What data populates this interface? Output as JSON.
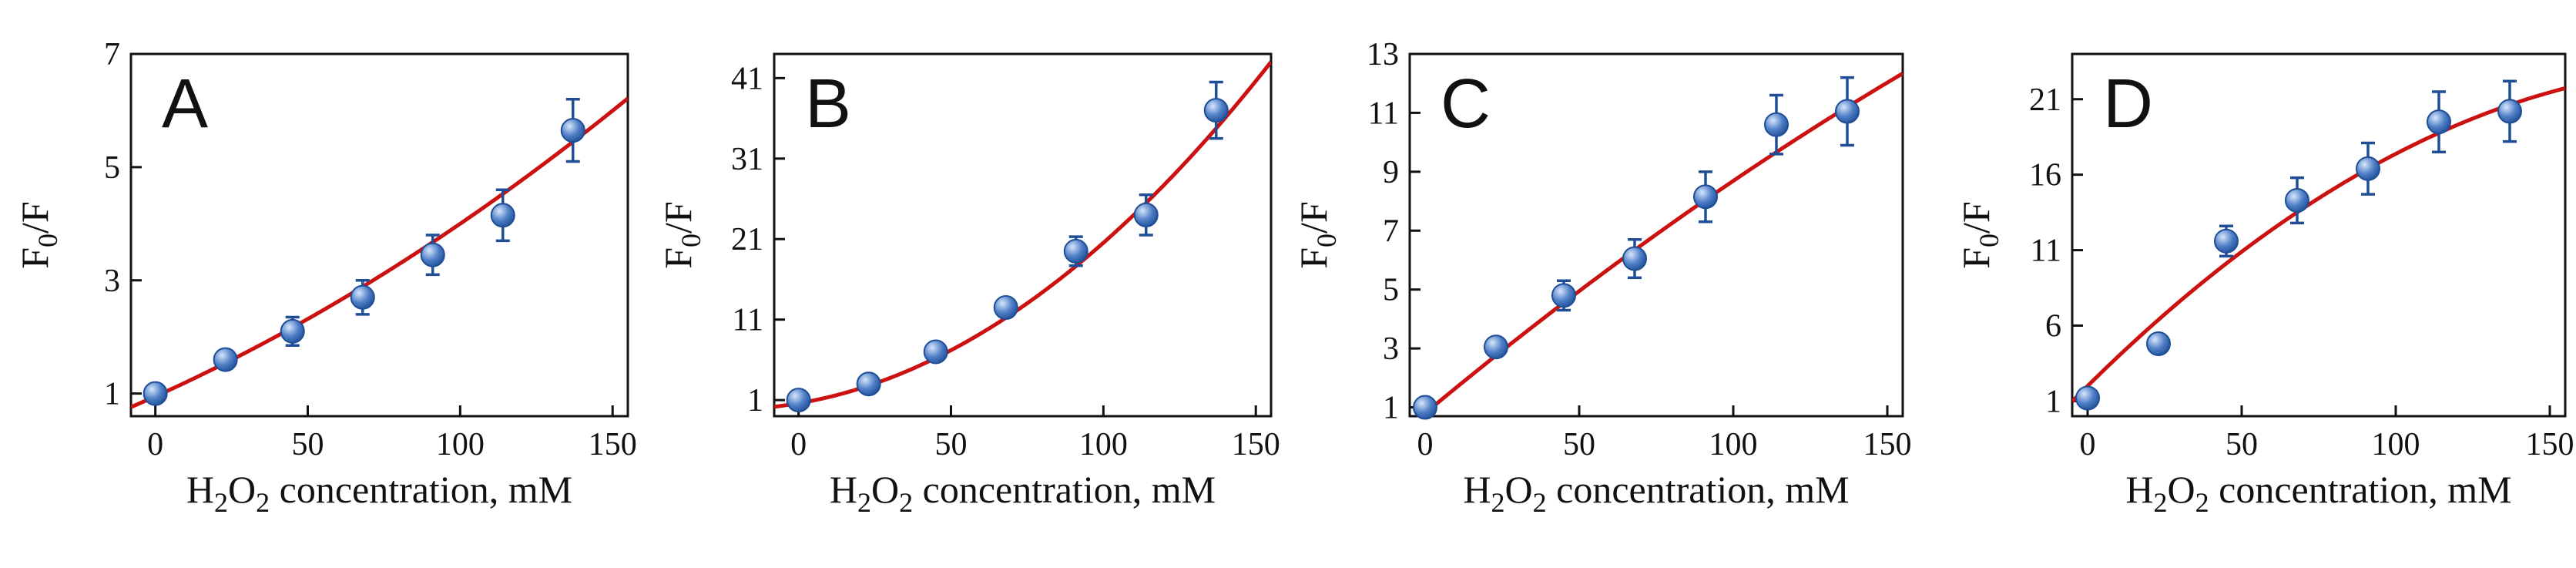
{
  "figure": {
    "background": "#ffffff"
  },
  "style": {
    "fit_color": "#cc1111",
    "marker_color": "#1f4e96",
    "marker_highlight": "#d6e6fb"
  },
  "chart_data": [
    {
      "type": "scatter",
      "panel_label": "A",
      "ylabel": "F0/F",
      "xlabel": "H2O2 concentration, mM",
      "xlim": [
        -8,
        155
      ],
      "ylim": [
        0.6,
        7
      ],
      "xticks": [
        0,
        50,
        100,
        150
      ],
      "yticks": [
        1,
        3,
        5,
        7
      ],
      "points": [
        {
          "x": 0,
          "y": 1.0,
          "err": 0.08
        },
        {
          "x": 23,
          "y": 1.6,
          "err": 0.12
        },
        {
          "x": 45,
          "y": 2.1,
          "err": 0.25
        },
        {
          "x": 68,
          "y": 2.7,
          "err": 0.3
        },
        {
          "x": 91,
          "y": 3.45,
          "err": 0.35
        },
        {
          "x": 114,
          "y": 4.15,
          "err": 0.45
        },
        {
          "x": 137,
          "y": 5.65,
          "err": 0.55
        }
      ],
      "fit": {
        "form": "quadratic",
        "coeffs": [
          0.95,
          0.0242,
          6.3e-05
        ]
      }
    },
    {
      "type": "scatter",
      "panel_label": "B",
      "ylabel": "F0/F",
      "xlabel": "H2O2 concentration, mM",
      "xlim": [
        -8,
        155
      ],
      "ylim": [
        -1,
        44
      ],
      "xticks": [
        0,
        50,
        100,
        150
      ],
      "yticks": [
        1,
        11,
        21,
        31,
        41
      ],
      "points": [
        {
          "x": 0,
          "y": 1.0,
          "err": 0.6
        },
        {
          "x": 23,
          "y": 3.0,
          "err": 0.6
        },
        {
          "x": 45,
          "y": 7.0,
          "err": 0.7
        },
        {
          "x": 68,
          "y": 12.5,
          "err": 1.0
        },
        {
          "x": 91,
          "y": 19.5,
          "err": 1.8
        },
        {
          "x": 114,
          "y": 24.0,
          "err": 2.5
        },
        {
          "x": 137,
          "y": 37.0,
          "err": 3.5
        }
      ],
      "fit": {
        "form": "quadratic",
        "coeffs": [
          0.6,
          0.0644,
          0.00135
        ]
      }
    },
    {
      "type": "scatter",
      "panel_label": "C",
      "ylabel": "F0/F",
      "xlabel": "H2O2 concentration, mM",
      "xlim": [
        -5,
        155
      ],
      "ylim": [
        0.7,
        13
      ],
      "xticks": [
        0,
        50,
        100,
        150
      ],
      "yticks": [
        1,
        3,
        5,
        7,
        9,
        11,
        13
      ],
      "points": [
        {
          "x": 0,
          "y": 1.0,
          "err": 0.2
        },
        {
          "x": 23,
          "y": 3.05,
          "err": 0.2
        },
        {
          "x": 45,
          "y": 4.8,
          "err": 0.5
        },
        {
          "x": 68,
          "y": 6.05,
          "err": 0.65
        },
        {
          "x": 91,
          "y": 8.15,
          "err": 0.85
        },
        {
          "x": 114,
          "y": 10.6,
          "err": 1.0
        },
        {
          "x": 137,
          "y": 11.05,
          "err": 1.15
        }
      ],
      "fit": {
        "form": "quadratic",
        "coeffs": [
          0.8,
          0.087,
          -8.1e-05
        ]
      }
    },
    {
      "type": "scatter",
      "panel_label": "D",
      "ylabel": "F0/F",
      "xlabel": "H2O2 concentration, mM",
      "xlim": [
        -5,
        155
      ],
      "ylim": [
        0,
        24
      ],
      "xticks": [
        0,
        50,
        100,
        150
      ],
      "yticks": [
        1,
        6,
        11,
        16,
        21
      ],
      "points": [
        {
          "x": 0,
          "y": 1.2,
          "err": 0.3
        },
        {
          "x": 23,
          "y": 4.8,
          "err": 0.3
        },
        {
          "x": 45,
          "y": 11.6,
          "err": 1.0
        },
        {
          "x": 68,
          "y": 14.3,
          "err": 1.5
        },
        {
          "x": 91,
          "y": 16.4,
          "err": 1.7
        },
        {
          "x": 114,
          "y": 19.5,
          "err": 2.0
        },
        {
          "x": 137,
          "y": 20.2,
          "err": 2.0
        }
      ],
      "fit": {
        "form": "quadratic",
        "coeffs": [
          2.0,
          0.202,
          -0.000482
        ]
      }
    }
  ]
}
